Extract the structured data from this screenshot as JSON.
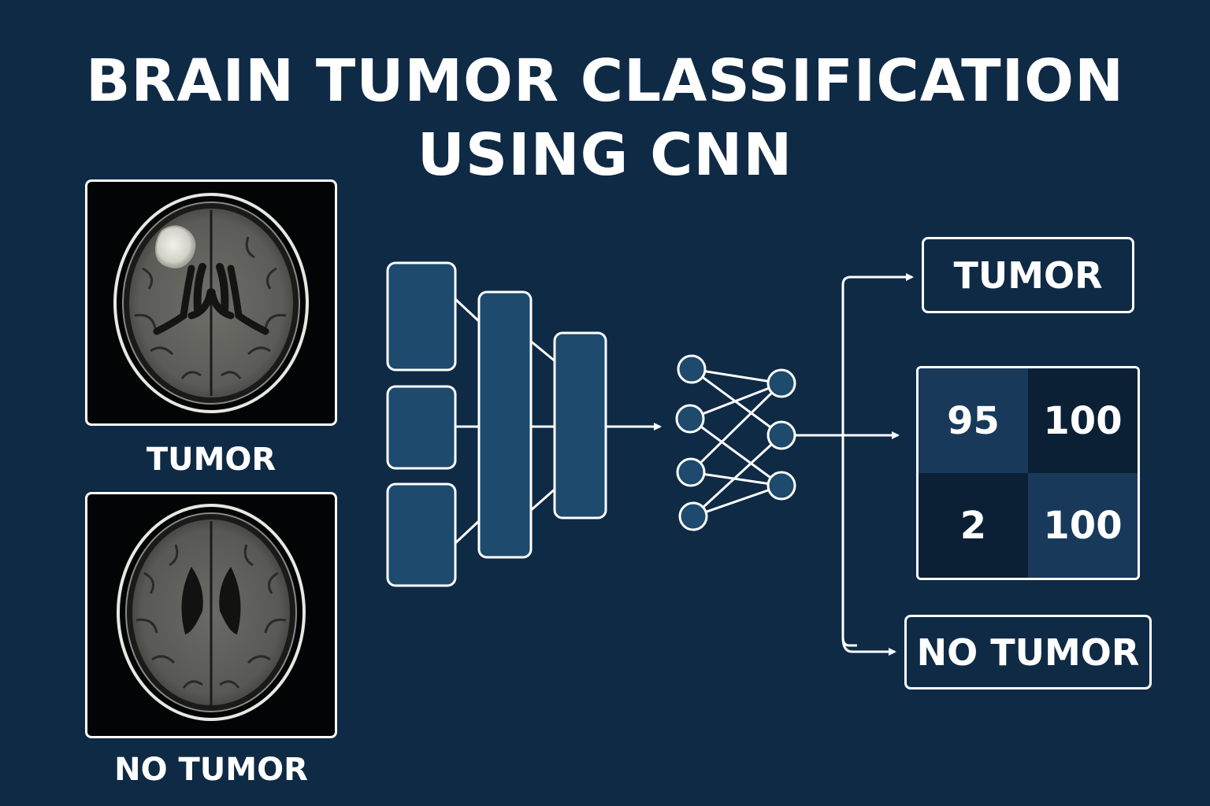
{
  "title": {
    "line1": "BRAIN TUMOR CLASSIFICATION",
    "line2": "USING CNN"
  },
  "inputs": [
    {
      "label": "TUMOR",
      "image": "mri-brain-with-tumor"
    },
    {
      "label": "NO TUMOR",
      "image": "mri-brain-without-tumor"
    }
  ],
  "outputs": {
    "top_label": "TUMOR",
    "bottom_label": "NO TUMOR"
  },
  "matrix": {
    "cells": [
      "95",
      "100",
      "2",
      "100"
    ]
  },
  "colors": {
    "background": "#0f2a45",
    "layer_fill": "#1d4a6d",
    "node_fill": "#1d4a6d",
    "stroke": "#ffffff",
    "matrix_light": "#18395a",
    "matrix_dark": "#0b2035"
  }
}
